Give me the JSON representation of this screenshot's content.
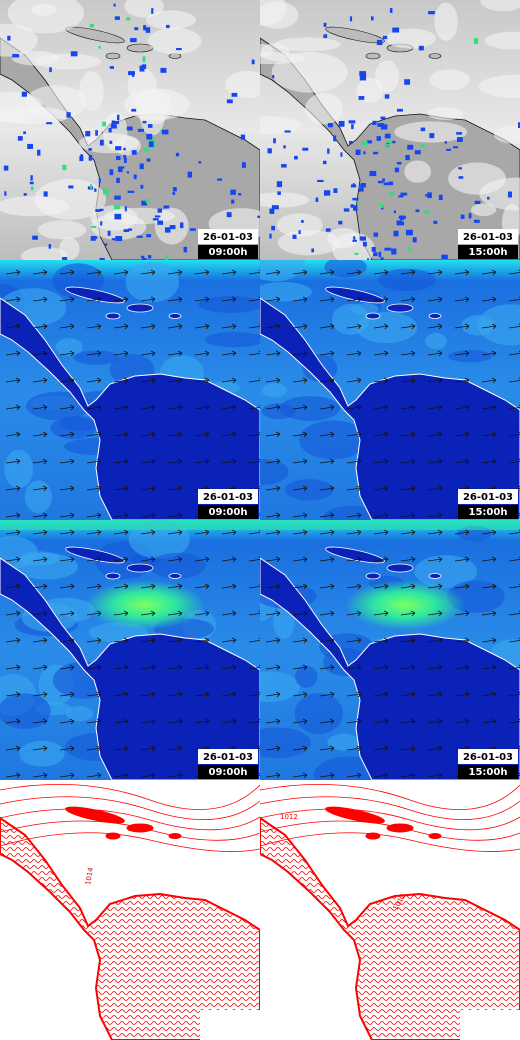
{
  "panels": [
    {
      "date": "26-01-03",
      "time": "09:00h"
    },
    {
      "date": "26-01-03",
      "time": "15:00h"
    },
    {
      "date": "26-01-03",
      "time": "09:00h"
    },
    {
      "date": "26-01-03",
      "time": "15:00h"
    },
    {
      "date": "26-01-03",
      "time": "09:00h"
    },
    {
      "date": "26-01-03",
      "time": "15:00h"
    }
  ],
  "pressure_labels": [
    [
      "1014"
    ],
    [
      "1012",
      "1012"
    ]
  ]
}
